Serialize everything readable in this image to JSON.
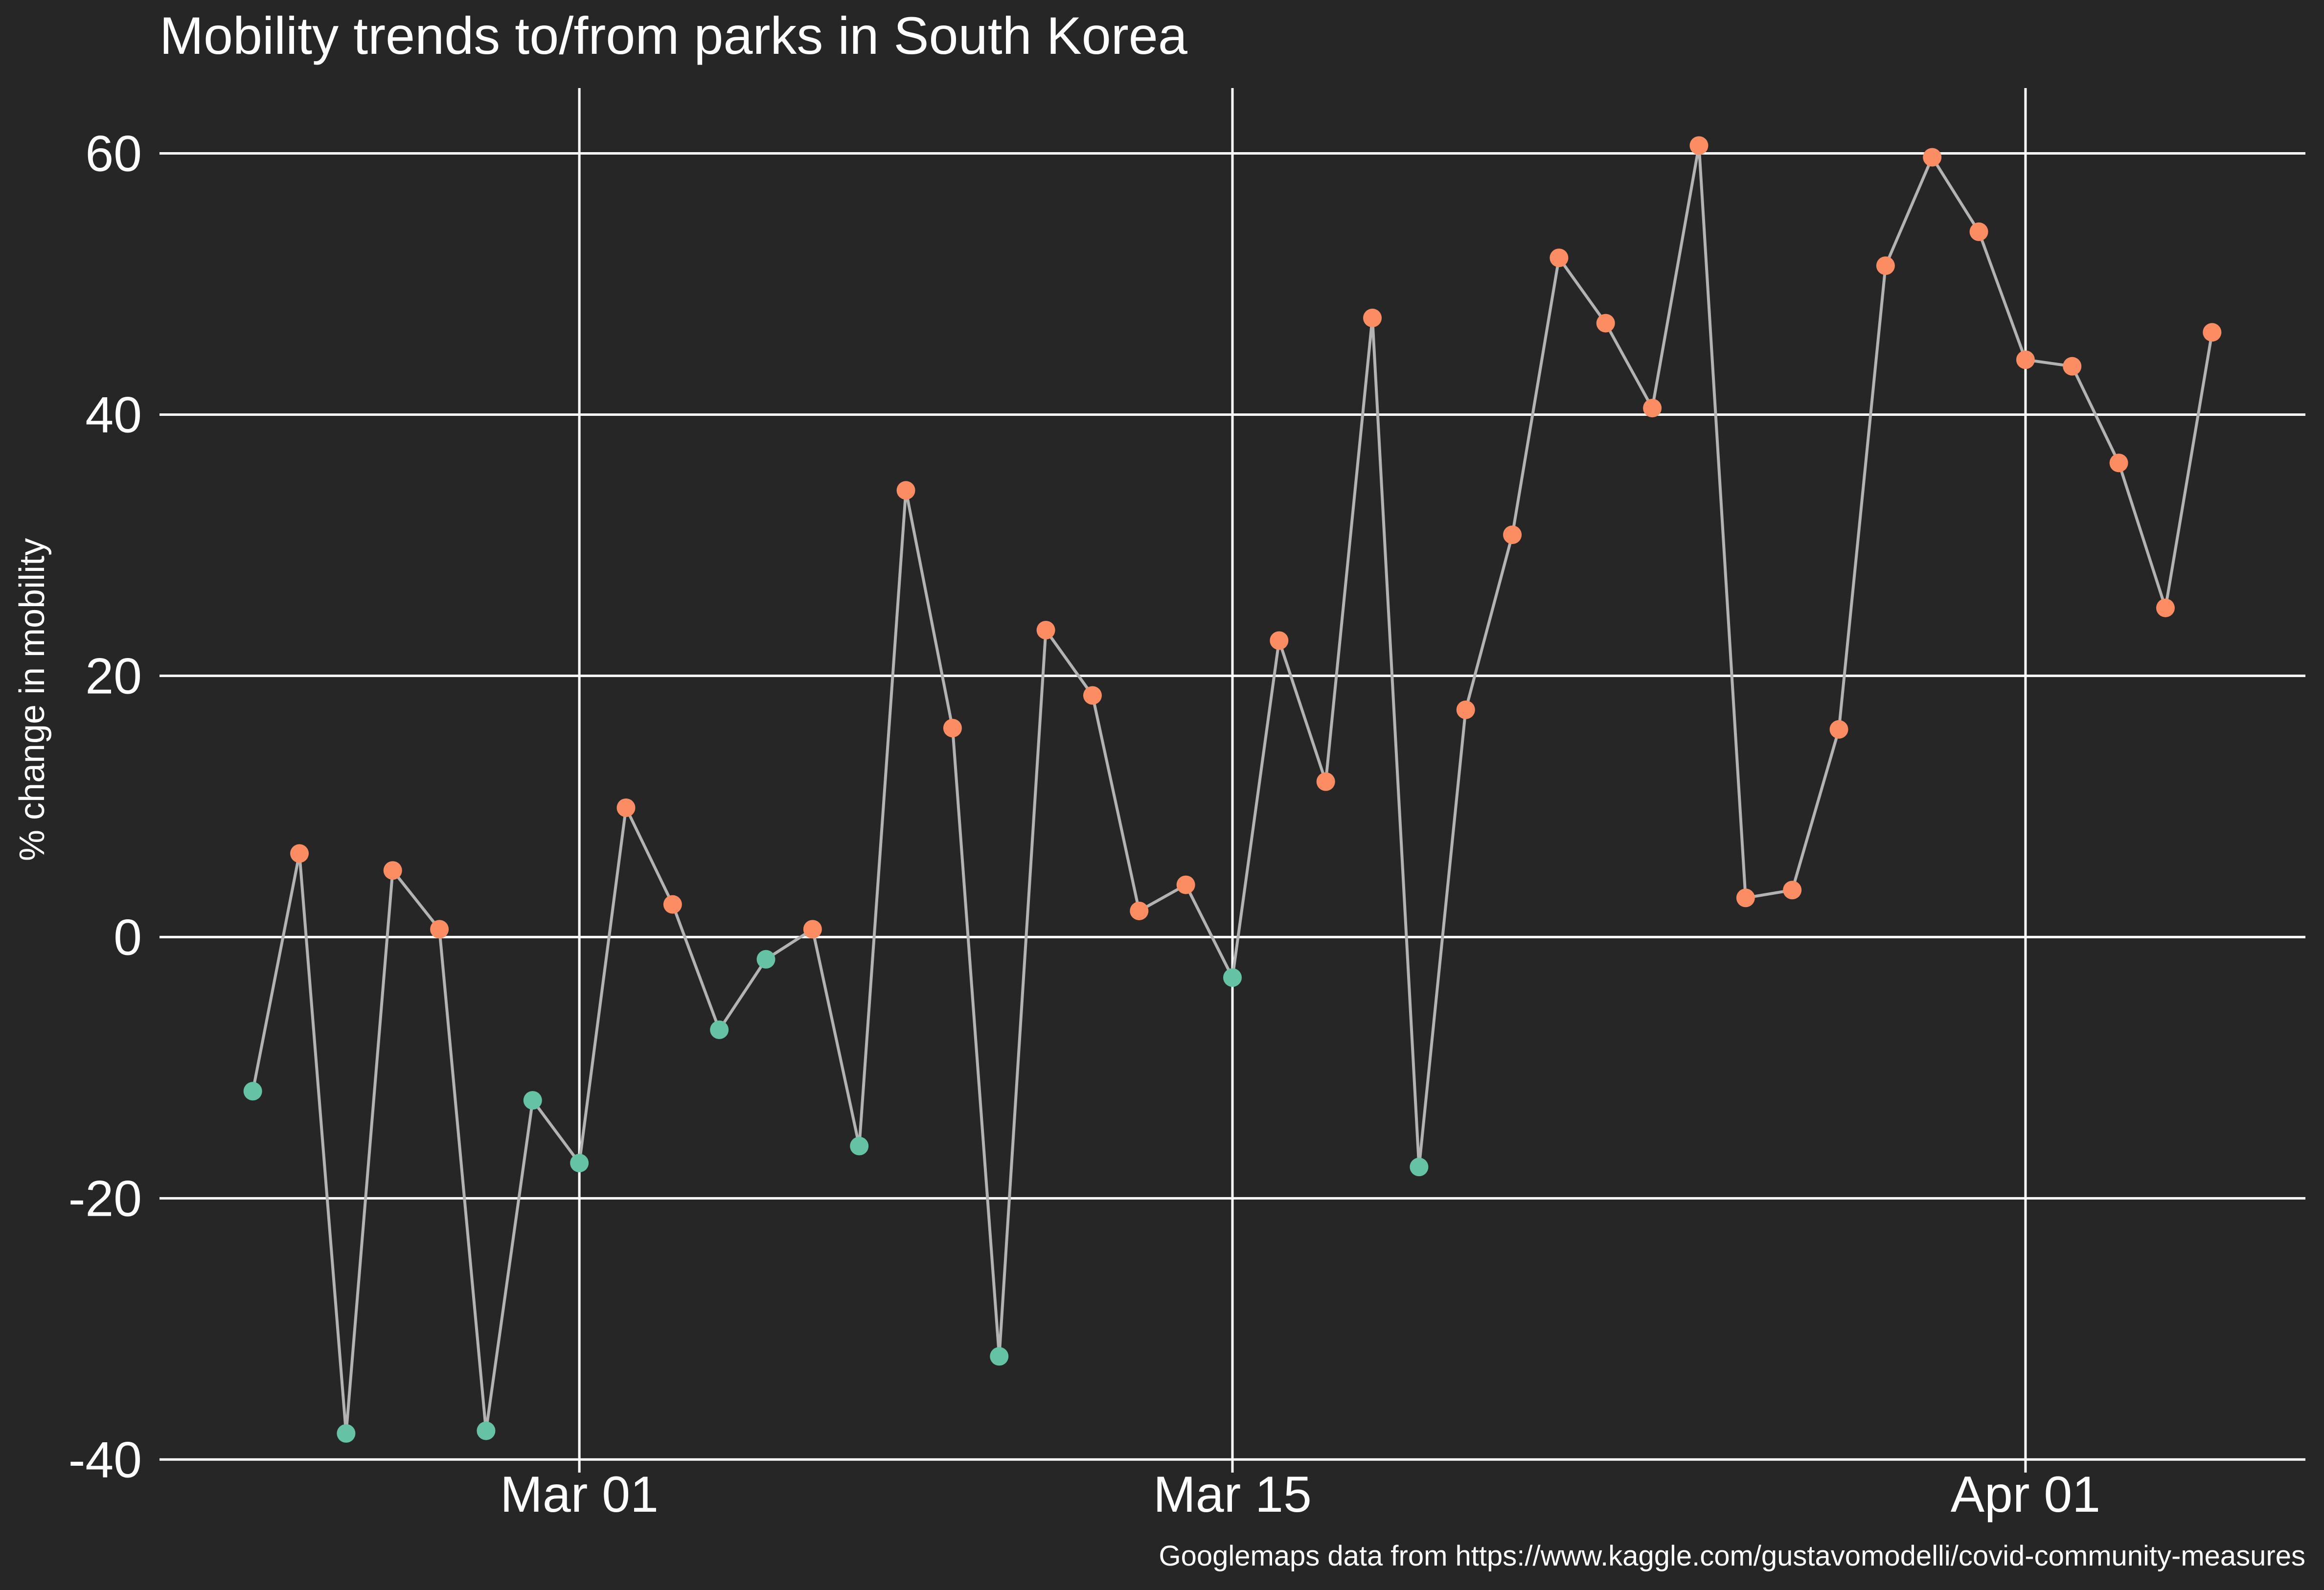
{
  "chart_data": {
    "type": "line",
    "title": "Mobility trends to/from parks in South Korea",
    "xlabel": "",
    "ylabel": "% change in mobility",
    "caption": "Googlemaps data from https://www.kaggle.com/gustavomodelli/covid-community-measures",
    "x_tick_labels": [
      "Mar 01",
      "Mar 15",
      "Apr 01"
    ],
    "x_tick_dates": [
      "2020-03-01",
      "2020-03-15",
      "2020-04-01"
    ],
    "y_ticks": [
      -40,
      -20,
      0,
      20,
      40,
      60
    ],
    "y_tick_labels": [
      "-40",
      "-20",
      "0",
      "20",
      "40",
      "60"
    ],
    "xlim": [
      "2020-02-21",
      "2020-04-07"
    ],
    "ylim": [
      -41,
      65
    ],
    "grid": true,
    "legend": "none",
    "colors": {
      "background": "#262626",
      "grid": "#ffffff",
      "line": "#b3b3b3",
      "positive": "#fc8d62",
      "negative": "#66c2a5"
    },
    "series": [
      {
        "x": [
          "2020-02-23",
          "2020-02-24",
          "2020-02-25",
          "2020-02-26",
          "2020-02-27",
          "2020-02-28",
          "2020-02-29",
          "2020-03-01",
          "2020-03-02",
          "2020-03-03",
          "2020-03-04",
          "2020-03-05",
          "2020-03-06",
          "2020-03-07",
          "2020-03-08",
          "2020-03-09",
          "2020-03-10",
          "2020-03-11",
          "2020-03-12",
          "2020-03-13",
          "2020-03-14",
          "2020-03-15",
          "2020-03-16",
          "2020-03-17",
          "2020-03-18",
          "2020-03-19",
          "2020-03-20",
          "2020-03-21",
          "2020-03-22",
          "2020-03-23",
          "2020-03-24",
          "2020-03-25",
          "2020-03-26",
          "2020-03-27",
          "2020-03-28",
          "2020-03-29",
          "2020-03-30",
          "2020-03-31",
          "2020-04-01",
          "2020-04-02",
          "2020-04-03",
          "2020-04-04",
          "2020-04-05"
        ],
        "values": [
          -11.8,
          6.4,
          -38.0,
          5.1,
          0.6,
          -37.8,
          -12.5,
          -17.3,
          9.9,
          2.5,
          -7.1,
          -1.7,
          0.6,
          -16.0,
          34.2,
          16.0,
          -32.1,
          23.5,
          18.5,
          2.0,
          4.0,
          -3.1,
          22.7,
          11.9,
          47.4,
          -17.6,
          17.4,
          30.8,
          52.0,
          47.0,
          40.5,
          60.6,
          3.0,
          3.6,
          15.9,
          51.4,
          59.7,
          54.0,
          44.2,
          43.7,
          36.3,
          25.2,
          46.3
        ]
      }
    ]
  }
}
